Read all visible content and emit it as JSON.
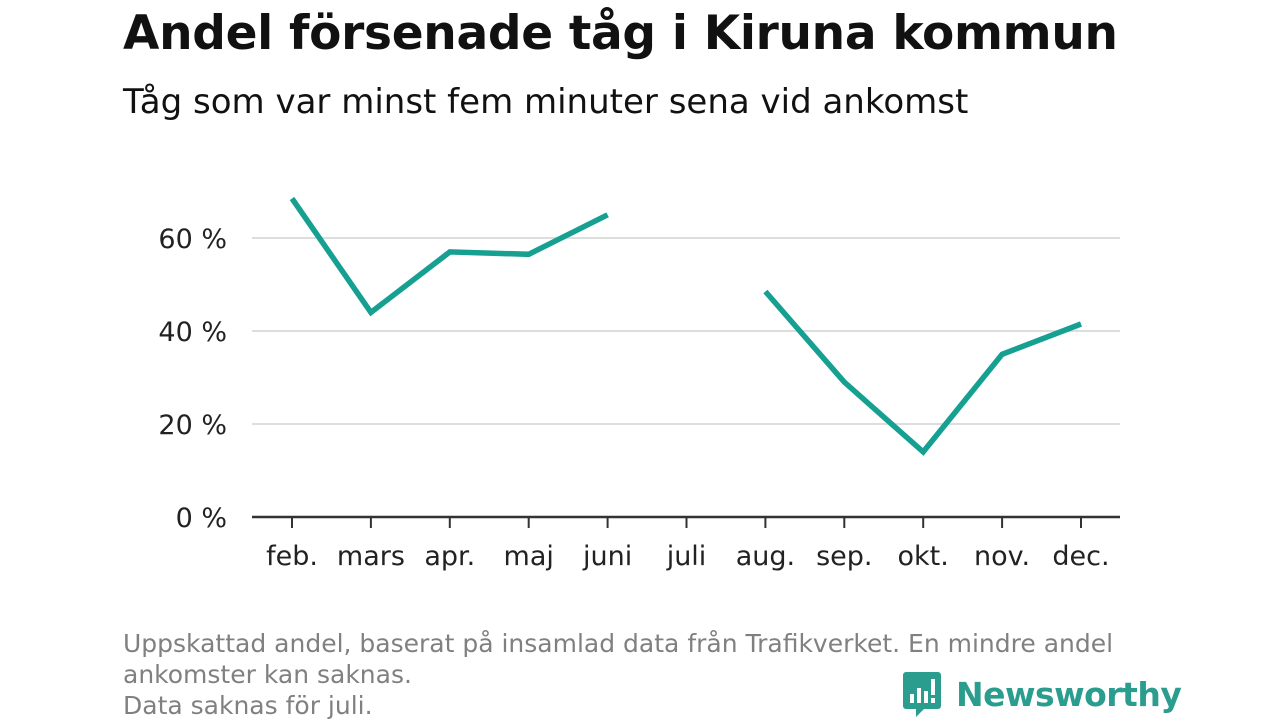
{
  "header": {
    "title": "Andel försenade tåg i Kiruna kommun",
    "subtitle": "Tåg som var minst fem minuter sena vid ankomst"
  },
  "chart_data": {
    "type": "line",
    "categories": [
      "feb.",
      "mars",
      "apr.",
      "maj",
      "juni",
      "juli",
      "aug.",
      "sep.",
      "okt.",
      "nov.",
      "dec."
    ],
    "series": [
      {
        "values": [
          68.5,
          44,
          57,
          56.5,
          65,
          null,
          48.5,
          29,
          14,
          35,
          41.5
        ]
      }
    ],
    "yticks": [
      0,
      20,
      40,
      60
    ],
    "ytick_labels": [
      "0 %",
      "20 %",
      "40 %",
      "60 %"
    ],
    "ylim": [
      0,
      70
    ],
    "grid": true,
    "line_color": "#16a092"
  },
  "footer": {
    "note_line1": "Uppskattad andel, baserat på insamlad data från Trafikverket. En mindre andel",
    "note_line2": "ankomster kan saknas.",
    "note_line3": "Data saknas för juli.",
    "brand": "Newsworthy",
    "brand_icon": "newsworthy-logo-icon",
    "brand_color": "#2a9d8f"
  }
}
